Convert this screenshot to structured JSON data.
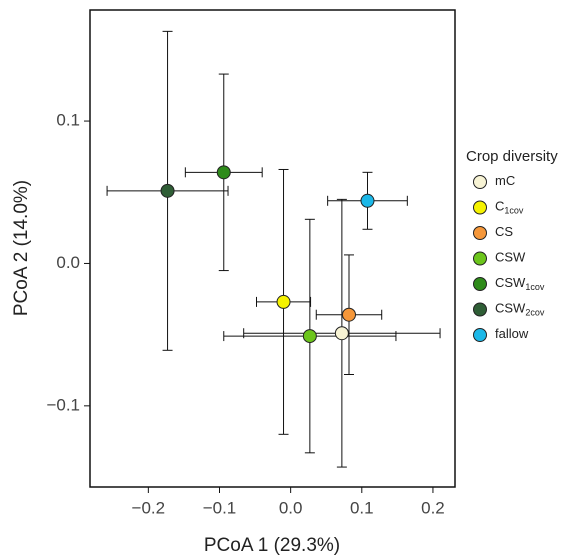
{
  "chart_data": {
    "type": "scatter",
    "xlabel": "PCoA 1 (29.3%)",
    "ylabel": "PCoA 2 (14.0%)",
    "legend_title": "Crop diversity",
    "legend": "right",
    "xlim": [
      -0.282,
      0.231
    ],
    "xticks": [
      {
        "value": -0.2,
        "label": "−0.2"
      },
      {
        "value": -0.1,
        "label": "−0.1"
      },
      {
        "value": 0.0,
        "label": "0.0"
      },
      0.1,
      0.2
    ],
    "ylim": [
      -0.157,
      0.178
    ],
    "yticks": [
      {
        "value": -0.1,
        "label": "−0.1"
      },
      {
        "value": 0.0,
        "label": "0.0"
      },
      0.1
    ],
    "series": [
      {
        "name": "mC",
        "color": "#f7f3d4",
        "x": 0.072,
        "y": -0.049,
        "xerr": 0.138,
        "yerr": 0.094
      },
      {
        "name": "C",
        "subscript": "1cov",
        "color": "#f5f200",
        "x": -0.01,
        "y": -0.027,
        "xerr": 0.038,
        "yerr": 0.093
      },
      {
        "name": "CS",
        "color": "#f5973a",
        "x": 0.082,
        "y": -0.036,
        "xerr": 0.046,
        "yerr": 0.042
      },
      {
        "name": "CSW",
        "color": "#6cc51c",
        "x": 0.027,
        "y": -0.051,
        "xerr": 0.121,
        "yerr": 0.082
      },
      {
        "name": "CSW",
        "subscript": "1cov",
        "color": "#2e8b1a",
        "x": -0.094,
        "y": 0.064,
        "xerr": 0.054,
        "yerr": 0.069
      },
      {
        "name": "CSW",
        "subscript": "2cov",
        "color": "#2f5e36",
        "x": -0.173,
        "y": 0.051,
        "xerr": 0.085,
        "yerr": 0.112
      },
      {
        "name": "fallow",
        "color": "#1cb8e8",
        "x": 0.108,
        "y": 0.044,
        "xerr": 0.056,
        "yerr": 0.02
      }
    ]
  }
}
